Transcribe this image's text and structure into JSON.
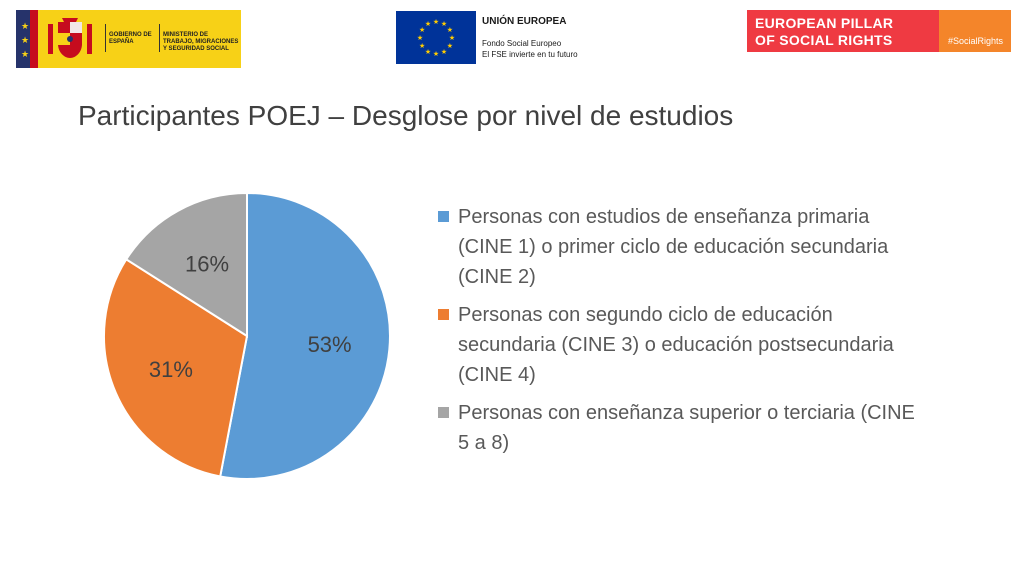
{
  "logos": {
    "spain": {
      "line1": "Gobierno de España",
      "line2": "Ministerio de Trabajo, Migraciones y Seguridad Social"
    },
    "eu": {
      "title": "UNIÓN EUROPEA",
      "sub1": "Fondo Social Europeo",
      "sub2": "El FSE invierte en tu futuro"
    },
    "pillar": {
      "line1": "EUROPEAN PILLAR",
      "line2": "OF SOCIAL RIGHTS",
      "tag": "#SocialRights"
    }
  },
  "slide": {
    "title": "Participantes POEJ – Desglose por nivel de estudios"
  },
  "chart_data": {
    "type": "pie",
    "title": "",
    "slices": [
      {
        "label": "Personas con estudios de enseñanza primaria (CINE 1) o primer ciclo de educación secundaria (CINE 2)",
        "value": 53,
        "display": "53%",
        "color": "#5b9bd5"
      },
      {
        "label": "Personas con segundo ciclo de educación secundaria (CINE 3) o educación postsecundaria (CINE 4)",
        "value": 31,
        "display": "31%",
        "color": "#ed7d31"
      },
      {
        "label": "Personas con enseñanza superior o terciaria (CINE 5 a 8)",
        "value": 16,
        "display": "16%",
        "color": "#a5a5a5"
      }
    ],
    "start_angle_deg": 0,
    "direction": "clockwise",
    "legend_position": "right"
  }
}
